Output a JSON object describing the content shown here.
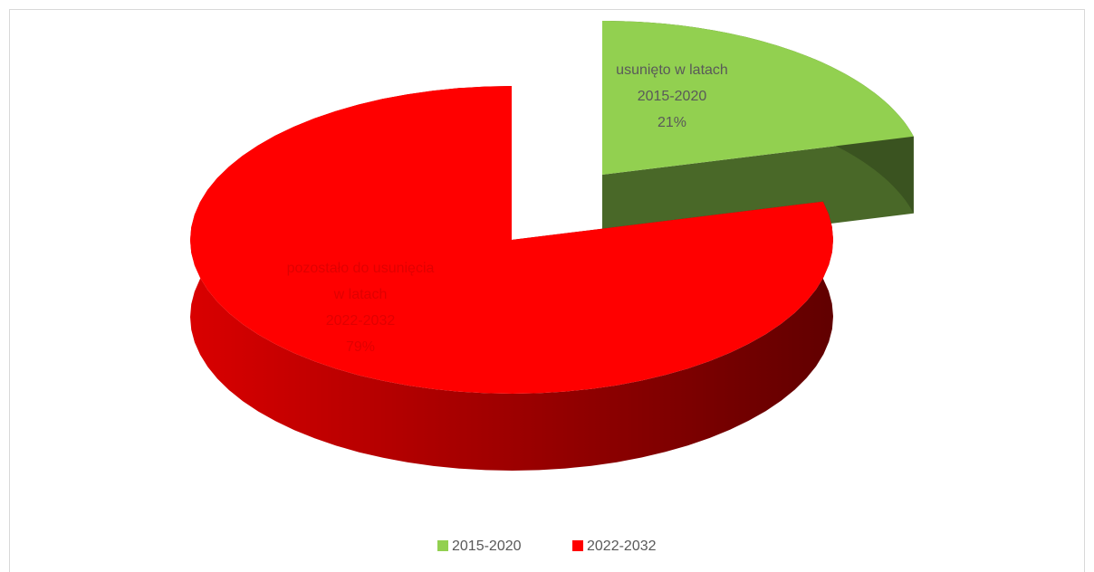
{
  "chart_data": {
    "type": "pie",
    "categories": [
      "2015-2020",
      "2022-2032"
    ],
    "values": [
      21,
      79
    ],
    "value_labels": [
      "21%",
      "79%"
    ],
    "label_prefixes": [
      [
        "usunięto w latach"
      ],
      [
        "pozostało do usunięcia",
        "w latach"
      ]
    ],
    "colors": [
      "#92d050",
      "#ff0000"
    ],
    "legend": "bottom"
  }
}
